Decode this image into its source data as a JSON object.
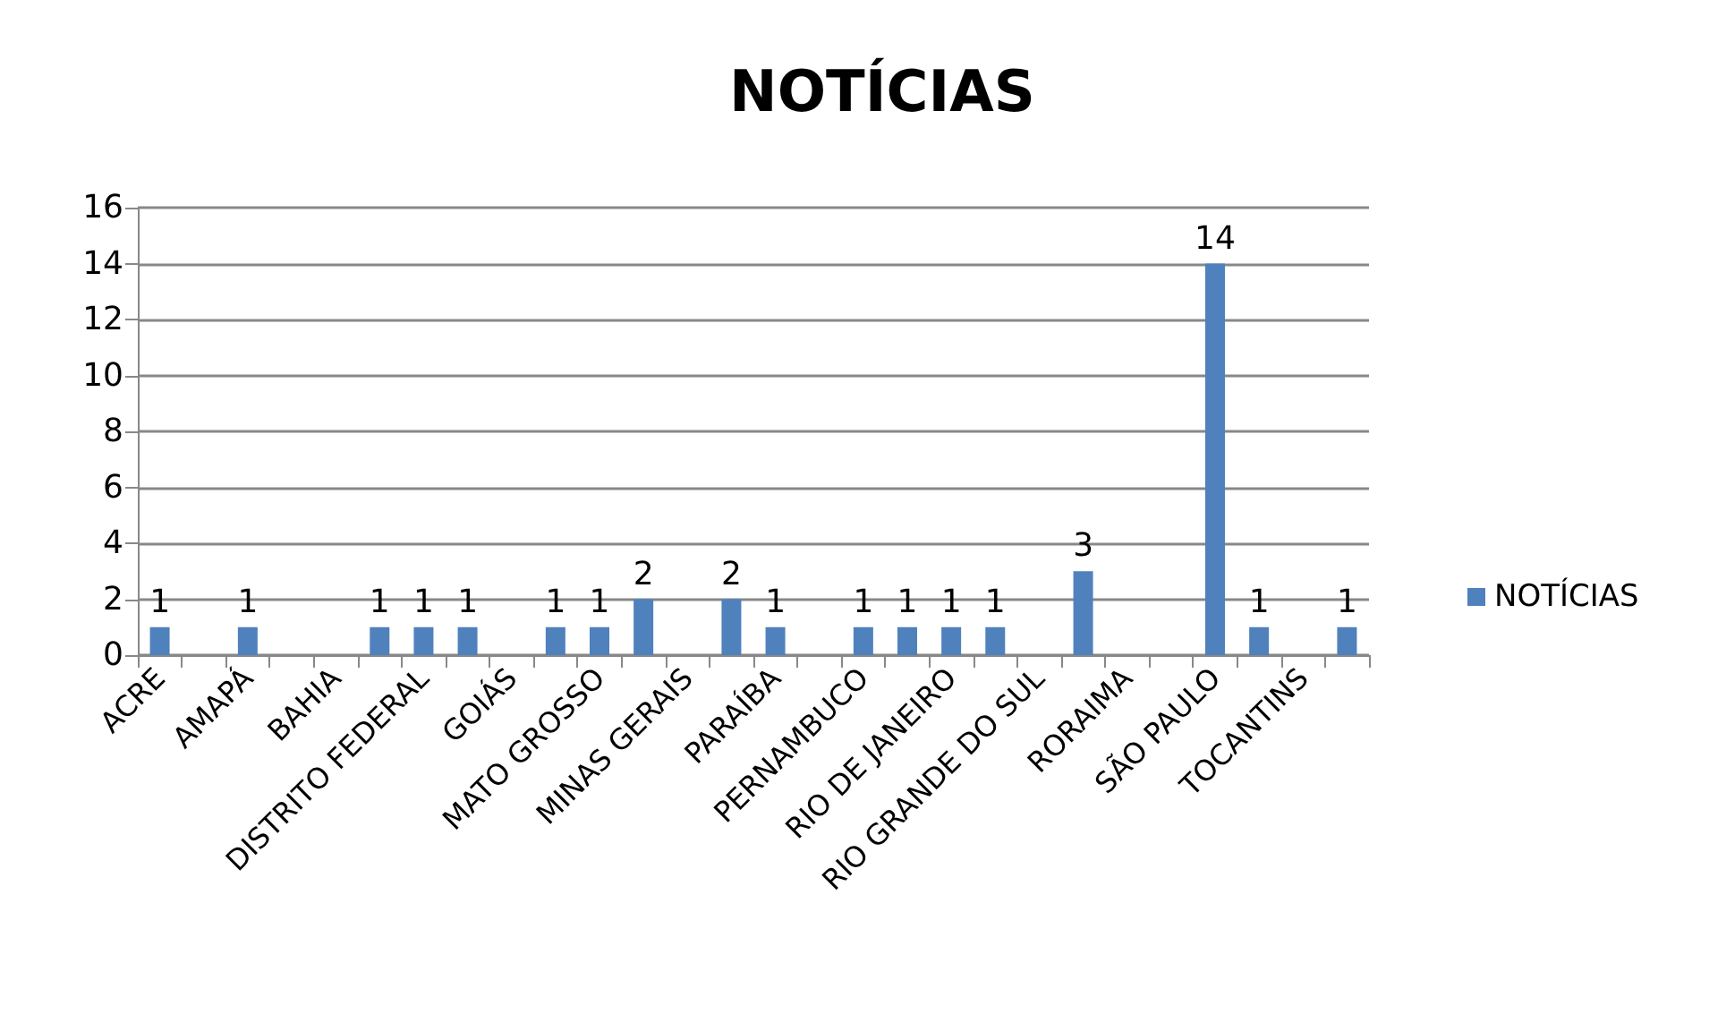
{
  "chart_data": {
    "type": "bar",
    "title": "NOTÍCIAS",
    "categories": [
      "ACRE",
      null,
      "AMAPÁ",
      null,
      "BAHIA",
      null,
      "DISTRITO FEDERAL",
      null,
      "GOIÁS",
      null,
      "MATO GROSSO",
      null,
      "MINAS GERAIS",
      null,
      "PARAÍBA",
      null,
      "PERNAMBUCO",
      null,
      "RIO DE JANEIRO",
      null,
      "RIO GRANDE DO SUL",
      null,
      "RORAIMA",
      null,
      "SÃO PAULO",
      null,
      "TOCANTINS",
      null
    ],
    "series": [
      {
        "name": "NOTÍCIAS",
        "color": "#4f81bd",
        "values": [
          1,
          null,
          1,
          null,
          null,
          1,
          1,
          1,
          null,
          1,
          1,
          2,
          null,
          2,
          1,
          null,
          1,
          1,
          1,
          1,
          null,
          3,
          null,
          null,
          14,
          1,
          null,
          1
        ]
      }
    ],
    "ylim": [
      0,
      16
    ],
    "yticks": [
      0,
      2,
      4,
      6,
      8,
      10,
      12,
      14,
      16
    ],
    "grid": "y",
    "legend": "right",
    "data_labels": true
  }
}
